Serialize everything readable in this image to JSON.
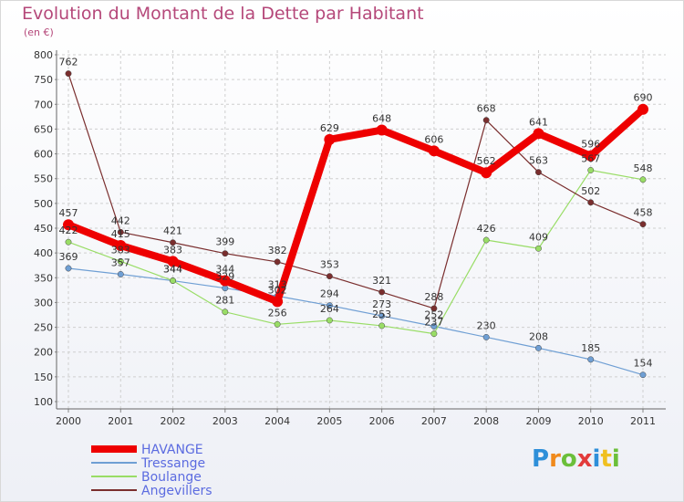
{
  "title": "Evolution du Montant de la Dette par Habitant",
  "unit": "(en €)",
  "logo": "Proxiti",
  "chart_data": {
    "type": "line",
    "title": "Evolution du Montant de la Dette par Habitant",
    "ylabel": "(en €)",
    "xlabel": "",
    "ylim": [
      100,
      800
    ],
    "yticks": [
      100,
      150,
      200,
      250,
      300,
      350,
      400,
      450,
      500,
      550,
      600,
      650,
      700,
      750,
      800
    ],
    "categories": [
      "2000",
      "2001",
      "2002",
      "2003",
      "2004",
      "2005",
      "2006",
      "2007",
      "2008",
      "2009",
      "2010",
      "2011"
    ],
    "grid": true,
    "legend": "bottom-left",
    "series": [
      {
        "name": "HAVANGE",
        "color": "#ee0000",
        "values": [
          457,
          415,
          383,
          344,
          302,
          629,
          648,
          606,
          562,
          641,
          596,
          690
        ]
      },
      {
        "name": "Tressange",
        "color": "#6f9fd4",
        "values": [
          369,
          357,
          344,
          329,
          313,
          294,
          273,
          252,
          230,
          208,
          185,
          154
        ]
      },
      {
        "name": "Boulange",
        "color": "#99dd66",
        "values": [
          422,
          383,
          344,
          281,
          256,
          264,
          253,
          237,
          426,
          409,
          567,
          548
        ]
      },
      {
        "name": "Angevillers",
        "color": "#7a2e2e",
        "values": [
          762,
          442,
          421,
          399,
          382,
          353,
          321,
          288,
          668,
          563,
          502,
          458
        ]
      }
    ]
  }
}
